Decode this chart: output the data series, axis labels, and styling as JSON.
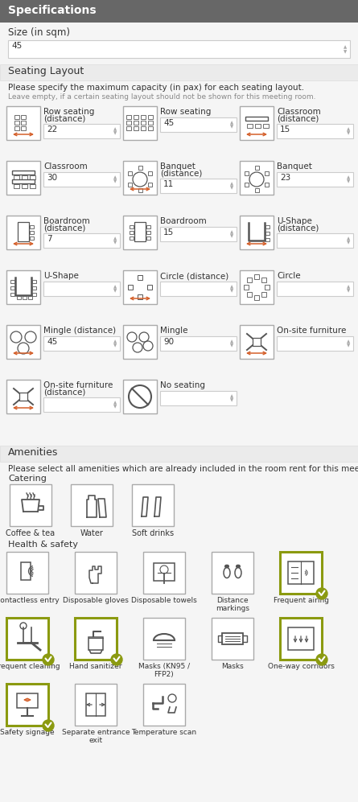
{
  "title": "Specifications",
  "title_bg": "#676767",
  "title_color": "#ffffff",
  "bg_color": "#f5f5f5",
  "section_bg": "#ebebeb",
  "border_color": "#cccccc",
  "text_color": "#333333",
  "light_text": "#888888",
  "arrow_color": "#d45f2a",
  "olive_color": "#8b9a10",
  "size_label": "Size (in sqm)",
  "size_value": "45",
  "seating_section": "Seating Layout",
  "seating_desc1": "Please specify the maximum capacity (in pax) for each seating layout.",
  "seating_desc2": "Leave empty, if a certain seating layout should not be shown for this meeting room.",
  "seating_items": [
    {
      "label": "Row seating\n(distance)",
      "value": "22",
      "col": 0,
      "row": 0,
      "has_arrow": true
    },
    {
      "label": "Row seating",
      "value": "45",
      "col": 1,
      "row": 0,
      "has_arrow": false
    },
    {
      "label": "Classroom\n(distance)",
      "value": "15",
      "col": 2,
      "row": 0,
      "has_arrow": true
    },
    {
      "label": "Classroom",
      "value": "30",
      "col": 0,
      "row": 1,
      "has_arrow": false
    },
    {
      "label": "Banquet\n(distance)",
      "value": "11",
      "col": 1,
      "row": 1,
      "has_arrow": true
    },
    {
      "label": "Banquet",
      "value": "23",
      "col": 2,
      "row": 1,
      "has_arrow": false
    },
    {
      "label": "Boardroom\n(distance)",
      "value": "7",
      "col": 0,
      "row": 2,
      "has_arrow": true
    },
    {
      "label": "Boardroom",
      "value": "15",
      "col": 1,
      "row": 2,
      "has_arrow": false
    },
    {
      "label": "U-Shape\n(distance)",
      "value": "",
      "col": 2,
      "row": 2,
      "has_arrow": true
    },
    {
      "label": "U-Shape",
      "value": "",
      "col": 0,
      "row": 3,
      "has_arrow": false
    },
    {
      "label": "Circle (distance)",
      "value": "",
      "col": 1,
      "row": 3,
      "has_arrow": true
    },
    {
      "label": "Circle",
      "value": "",
      "col": 2,
      "row": 3,
      "has_arrow": false
    },
    {
      "label": "Mingle (distance)",
      "value": "45",
      "col": 0,
      "row": 4,
      "has_arrow": true
    },
    {
      "label": "Mingle",
      "value": "90",
      "col": 1,
      "row": 4,
      "has_arrow": false
    },
    {
      "label": "On-site furniture",
      "value": "",
      "col": 2,
      "row": 4,
      "has_arrow": true
    },
    {
      "label": "On-site furniture\n(distance)",
      "value": "",
      "col": 0,
      "row": 5,
      "has_arrow": true
    },
    {
      "label": "No seating",
      "value": "",
      "col": 1,
      "row": 5,
      "has_arrow": false
    }
  ],
  "amenities_section": "Amenities",
  "amenities_desc": "Please select all amenities which are already included in the room rent for this meeting room.",
  "catering_label": "Catering",
  "catering_items": [
    {
      "label": "Coffee & tea",
      "checked": false
    },
    {
      "label": "Water",
      "checked": false
    },
    {
      "label": "Soft drinks",
      "checked": false
    }
  ],
  "health_label": "Health & safety",
  "health_items": [
    {
      "label": "Contactless entry",
      "checked": false
    },
    {
      "label": "Disposable gloves",
      "checked": false
    },
    {
      "label": "Disposable towels",
      "checked": false
    },
    {
      "label": "Distance\nmarkings",
      "checked": false
    },
    {
      "label": "Frequent airing",
      "checked": true
    },
    {
      "label": "Frequent cleaning",
      "checked": true
    },
    {
      "label": "Hand sanitizer",
      "checked": true
    },
    {
      "label": "Masks (KN95 /\nFFP2)",
      "checked": false
    },
    {
      "label": "Masks",
      "checked": false
    },
    {
      "label": "One-way corridors",
      "checked": true
    },
    {
      "label": "Safety signage",
      "checked": true
    },
    {
      "label": "Separate entrance\nexit",
      "checked": false
    },
    {
      "label": "Temperature scan",
      "checked": false
    }
  ]
}
